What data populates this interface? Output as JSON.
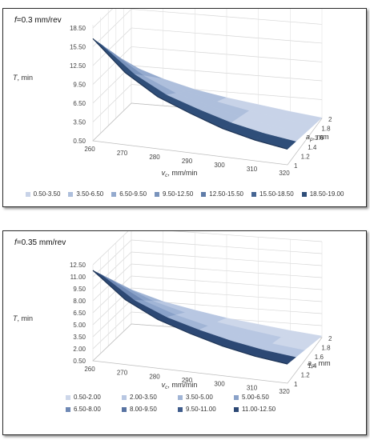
{
  "chart_data": [
    {
      "type": "surface",
      "title": "f=0.3 mm/rev",
      "title_var": "f",
      "title_rest": "=0.3 mm/rev",
      "xlabel": "vc, mm/min",
      "xlabel_var": "v",
      "xlabel_sub": "c",
      "xlabel_rest": ", mm/min",
      "ylabel": "T, min",
      "ylabel_var": "T",
      "ylabel_rest": ", min",
      "depthlabel": "ap, mm",
      "depthlabel_var": "a",
      "depthlabel_sub": "p",
      "depthlabel_rest": ", mm",
      "x_ticks": [
        "260",
        "270",
        "280",
        "290",
        "300",
        "310",
        "320"
      ],
      "x_values": [
        260,
        270,
        280,
        290,
        300,
        310,
        320
      ],
      "z_ticks": [
        "0.50",
        "3.50",
        "6.50",
        "9.50",
        "12.50",
        "15.50",
        "18.50"
      ],
      "z_values": [
        0.5,
        3.5,
        6.5,
        9.5,
        12.5,
        15.5,
        18.5
      ],
      "zlim": [
        0.5,
        19
      ],
      "depth_ticks": [
        "1",
        "1.2",
        "1.4",
        "1.6",
        "1.8",
        "2"
      ],
      "depth_values": [
        1,
        1.2,
        1.4,
        1.6,
        1.8,
        2
      ],
      "edge_front": [
        [
          260,
          16.8
        ],
        [
          270,
          12.0
        ],
        [
          280,
          8.8
        ],
        [
          290,
          6.8
        ],
        [
          300,
          5.0
        ],
        [
          310,
          3.8
        ],
        [
          320,
          3.0
        ]
      ],
      "edge_back": [
        [
          260,
          6.5
        ],
        [
          270,
          4.8
        ],
        [
          280,
          3.5
        ],
        [
          290,
          2.6
        ],
        [
          300,
          1.9
        ],
        [
          310,
          1.2
        ],
        [
          320,
          0.6
        ]
      ],
      "legend": [
        "0.50-3.50",
        "3.50-6.50",
        "6.50-9.50",
        "9.50-12.50",
        "12.50-15.50",
        "15.50-18.50",
        "18.50-19.00"
      ],
      "legend_colors": [
        "#c8d3e8",
        "#aebfdc",
        "#94aace",
        "#7993bc",
        "#5f7ca8",
        "#466593",
        "#2f4e79"
      ],
      "grid": true
    },
    {
      "type": "surface",
      "title": "f=0.35 mm/rev",
      "title_var": "f",
      "title_rest": "=0.35 mm/rev",
      "xlabel": "vc, mm/min",
      "xlabel_var": "v",
      "xlabel_sub": "c",
      "xlabel_rest": ", mm/min",
      "ylabel": "T, min",
      "ylabel_var": "T",
      "ylabel_rest": ", min",
      "depthlabel": "ap, mm",
      "depthlabel_var": "a",
      "depthlabel_sub": "p",
      "depthlabel_rest": ", mm",
      "x_ticks": [
        "260",
        "270",
        "280",
        "290",
        "300",
        "310",
        "320"
      ],
      "x_values": [
        260,
        270,
        280,
        290,
        300,
        310,
        320
      ],
      "z_ticks": [
        "0.50",
        "2.00",
        "3.50",
        "5.00",
        "6.50",
        "8.00",
        "9.50",
        "11.00",
        "12.50"
      ],
      "z_values": [
        0.5,
        2.0,
        3.5,
        5.0,
        6.5,
        8.0,
        9.5,
        11.0,
        12.5
      ],
      "zlim": [
        0.5,
        12.5
      ],
      "depth_ticks": [
        "1",
        "1.2",
        "1.4",
        "1.6",
        "1.8",
        "2"
      ],
      "depth_values": [
        1,
        1.2,
        1.4,
        1.6,
        1.8,
        2
      ],
      "edge_front": [
        [
          260,
          11.8
        ],
        [
          270,
          8.6
        ],
        [
          280,
          6.6
        ],
        [
          290,
          5.3
        ],
        [
          300,
          4.2
        ],
        [
          310,
          3.4
        ],
        [
          320,
          2.9
        ]
      ],
      "edge_back": [
        [
          260,
          4.8
        ],
        [
          270,
          3.6
        ],
        [
          280,
          2.8
        ],
        [
          290,
          2.1
        ],
        [
          300,
          1.6
        ],
        [
          310,
          1.1
        ],
        [
          320,
          0.7
        ]
      ],
      "legend": [
        "0.50-2.00",
        "2.00-3.50",
        "3.50-5.00",
        "5.00-6.50",
        "6.50-8.00",
        "8.00-9.50",
        "9.50-11.00",
        "11.00-12.50"
      ],
      "legend_colors": [
        "#cdd7ea",
        "#b8c7e2",
        "#a1b5d6",
        "#8aa2c9",
        "#6f89b5",
        "#5873a2",
        "#3f5c8c",
        "#2c4874"
      ],
      "grid": true
    }
  ]
}
